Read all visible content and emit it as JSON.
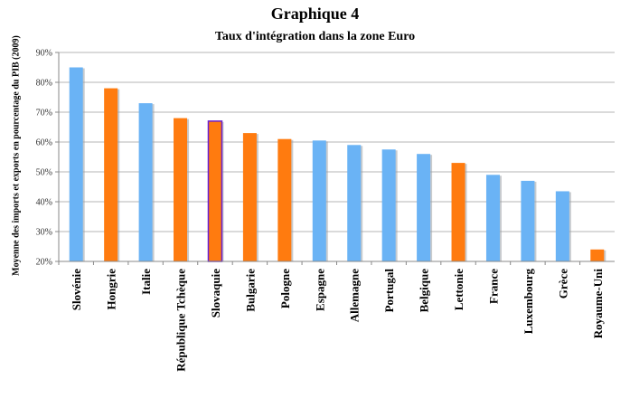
{
  "chart_data": {
    "type": "bar",
    "title": "Graphique 4",
    "subtitle": "Taux d'intégration dans la zone Euro",
    "ylabel": "Moyenne des imports et exports en pourcentage du PIB (2009)",
    "xlabel": "",
    "ylim": [
      20,
      90
    ],
    "yticks": [
      20,
      30,
      40,
      50,
      60,
      70,
      80,
      90
    ],
    "ytick_labels": [
      "20%",
      "30%",
      "40%",
      "50%",
      "60%",
      "70%",
      "80%",
      "90%"
    ],
    "grid": true,
    "categories": [
      "Slovénie",
      "Hongrie",
      "Italie",
      "République Tchèque",
      "Slovaquie",
      "Bulgarie",
      "Pologne",
      "Espagne",
      "Allemagne",
      "Portugal",
      "Belgique",
      "Lettonie",
      "France",
      "Luxembourg",
      "Grèce",
      "Royaume-Uni"
    ],
    "values": [
      85,
      78,
      73,
      68,
      67,
      63,
      61,
      60.5,
      59,
      57.5,
      56,
      53,
      49,
      47,
      43.5,
      24
    ],
    "bar_colors": [
      "#6ab3f5",
      "#ff7b0f",
      "#6ab3f5",
      "#ff7b0f",
      "#ff7b0f",
      "#ff7b0f",
      "#ff7b0f",
      "#6ab3f5",
      "#6ab3f5",
      "#6ab3f5",
      "#6ab3f5",
      "#ff7b0f",
      "#6ab3f5",
      "#6ab3f5",
      "#6ab3f5",
      "#ff7b0f"
    ],
    "highlight": {
      "category": "Slovaquie",
      "border_color": "#6a1fd0"
    }
  }
}
